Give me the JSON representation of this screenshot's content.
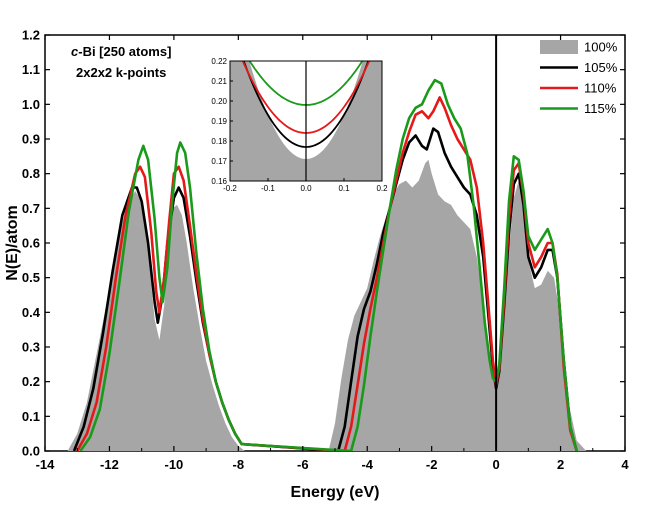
{
  "chart_data": {
    "type": "area",
    "xlabel": "Energy (eV)",
    "ylabel": "N(E)/atom",
    "xlim": [
      -14,
      4
    ],
    "ylim": [
      0.0,
      1.2
    ],
    "xticks": [
      "-14",
      "-12",
      "-10",
      "-8",
      "-6",
      "-4",
      "-2",
      "0",
      "2",
      "4"
    ],
    "yticks": [
      "0.0",
      "0.1",
      "0.2",
      "0.3",
      "0.4",
      "0.5",
      "0.6",
      "0.7",
      "0.8",
      "0.9",
      "1.0",
      "1.1",
      "1.2"
    ],
    "annotation_line1_prefix": "c",
    "annotation_line1_rest": "-Bi [250 atoms]",
    "annotation_line2": "2x2x2 k-points",
    "legend_position": "top-right",
    "fermi_line_x": 0,
    "series": [
      {
        "name": "100%",
        "style": "filled",
        "color": "#a6a6a6",
        "x": [
          -13.3,
          -13.0,
          -12.7,
          -12.4,
          -12.1,
          -11.8,
          -11.5,
          -11.2,
          -11.0,
          -10.8,
          -10.6,
          -10.45,
          -10.3,
          -10.2,
          -10.05,
          -9.9,
          -9.75,
          -9.6,
          -9.4,
          -9.2,
          -9.0,
          -8.8,
          -8.6,
          -8.4,
          -8.2,
          -8.0,
          -7.8,
          -5.2,
          -5.0,
          -4.8,
          -4.6,
          -4.4,
          -4.2,
          -4.0,
          -3.8,
          -3.6,
          -3.4,
          -3.2,
          -3.0,
          -2.8,
          -2.6,
          -2.4,
          -2.2,
          -2.1,
          -2.0,
          -1.8,
          -1.6,
          -1.4,
          -1.2,
          -1.0,
          -0.8,
          -0.6,
          -0.4,
          -0.25,
          -0.1,
          0.0,
          0.1,
          0.25,
          0.4,
          0.55,
          0.7,
          0.85,
          1.0,
          1.2,
          1.4,
          1.6,
          1.8,
          2.0,
          2.2,
          2.5,
          2.8
        ],
        "y": [
          0.0,
          0.05,
          0.14,
          0.28,
          0.42,
          0.58,
          0.7,
          0.75,
          0.72,
          0.58,
          0.38,
          0.32,
          0.42,
          0.58,
          0.7,
          0.71,
          0.68,
          0.6,
          0.47,
          0.36,
          0.26,
          0.19,
          0.13,
          0.08,
          0.04,
          0.015,
          0.0,
          0.0,
          0.08,
          0.21,
          0.32,
          0.39,
          0.43,
          0.47,
          0.55,
          0.62,
          0.68,
          0.74,
          0.77,
          0.78,
          0.76,
          0.78,
          0.83,
          0.84,
          0.8,
          0.74,
          0.72,
          0.71,
          0.68,
          0.66,
          0.64,
          0.56,
          0.42,
          0.3,
          0.22,
          0.18,
          0.22,
          0.38,
          0.58,
          0.73,
          0.78,
          0.72,
          0.55,
          0.47,
          0.48,
          0.52,
          0.5,
          0.38,
          0.16,
          0.03,
          0.0
        ]
      },
      {
        "name": "105%",
        "style": "line",
        "color": "#000000",
        "x": [
          -13.1,
          -12.8,
          -12.5,
          -12.2,
          -11.9,
          -11.6,
          -11.3,
          -11.15,
          -11.0,
          -10.8,
          -10.6,
          -10.5,
          -10.35,
          -10.2,
          -10.0,
          -9.85,
          -9.7,
          -9.5,
          -9.3,
          -9.1,
          -8.9,
          -8.7,
          -8.5,
          -8.3,
          -8.1,
          -7.9,
          -4.9,
          -4.7,
          -4.5,
          -4.3,
          -4.1,
          -3.9,
          -3.7,
          -3.5,
          -3.3,
          -3.1,
          -2.9,
          -2.7,
          -2.5,
          -2.3,
          -2.15,
          -1.95,
          -1.8,
          -1.6,
          -1.4,
          -1.2,
          -1.0,
          -0.8,
          -0.6,
          -0.4,
          -0.25,
          -0.1,
          0.0,
          0.1,
          0.25,
          0.4,
          0.55,
          0.7,
          0.85,
          1.0,
          1.2,
          1.4,
          1.6,
          1.75,
          1.9,
          2.1,
          2.3,
          2.5
        ],
        "y": [
          0.0,
          0.07,
          0.18,
          0.34,
          0.52,
          0.68,
          0.76,
          0.76,
          0.72,
          0.6,
          0.43,
          0.37,
          0.45,
          0.6,
          0.73,
          0.76,
          0.73,
          0.62,
          0.49,
          0.37,
          0.28,
          0.2,
          0.14,
          0.09,
          0.05,
          0.02,
          0.0,
          0.07,
          0.2,
          0.33,
          0.41,
          0.46,
          0.54,
          0.63,
          0.7,
          0.77,
          0.84,
          0.89,
          0.91,
          0.88,
          0.87,
          0.93,
          0.92,
          0.86,
          0.82,
          0.79,
          0.76,
          0.74,
          0.68,
          0.56,
          0.4,
          0.24,
          0.18,
          0.23,
          0.42,
          0.63,
          0.77,
          0.8,
          0.71,
          0.56,
          0.5,
          0.53,
          0.58,
          0.58,
          0.5,
          0.26,
          0.07,
          0.0
        ]
      },
      {
        "name": "110%",
        "style": "line",
        "color": "#e41a1a",
        "x": [
          -13.0,
          -12.7,
          -12.4,
          -12.1,
          -11.8,
          -11.5,
          -11.2,
          -11.05,
          -10.9,
          -10.7,
          -10.55,
          -10.45,
          -10.3,
          -10.15,
          -10.0,
          -9.85,
          -9.7,
          -9.5,
          -9.3,
          -9.1,
          -8.9,
          -8.7,
          -8.5,
          -8.3,
          -8.1,
          -7.9,
          -4.7,
          -4.5,
          -4.3,
          -4.1,
          -3.9,
          -3.7,
          -3.5,
          -3.3,
          -3.1,
          -2.9,
          -2.7,
          -2.5,
          -2.3,
          -2.1,
          -1.95,
          -1.75,
          -1.6,
          -1.4,
          -1.2,
          -1.0,
          -0.8,
          -0.6,
          -0.4,
          -0.25,
          -0.1,
          0.0,
          0.1,
          0.25,
          0.4,
          0.55,
          0.7,
          0.85,
          1.0,
          1.2,
          1.4,
          1.6,
          1.75,
          1.9,
          2.1,
          2.3,
          2.5
        ],
        "y": [
          0.0,
          0.05,
          0.14,
          0.3,
          0.5,
          0.68,
          0.8,
          0.82,
          0.79,
          0.63,
          0.46,
          0.4,
          0.5,
          0.66,
          0.8,
          0.82,
          0.78,
          0.65,
          0.51,
          0.38,
          0.28,
          0.2,
          0.14,
          0.09,
          0.05,
          0.02,
          0.0,
          0.07,
          0.19,
          0.31,
          0.41,
          0.5,
          0.6,
          0.7,
          0.78,
          0.86,
          0.92,
          0.97,
          0.98,
          0.96,
          0.98,
          1.02,
          0.99,
          0.94,
          0.9,
          0.87,
          0.84,
          0.76,
          0.6,
          0.43,
          0.26,
          0.19,
          0.24,
          0.44,
          0.67,
          0.81,
          0.83,
          0.74,
          0.6,
          0.53,
          0.56,
          0.6,
          0.6,
          0.51,
          0.24,
          0.06,
          0.0
        ]
      },
      {
        "name": "115%",
        "style": "line",
        "color": "#1a9a1a",
        "x": [
          -12.9,
          -12.6,
          -12.3,
          -12.0,
          -11.7,
          -11.4,
          -11.1,
          -10.95,
          -10.8,
          -10.6,
          -10.45,
          -10.35,
          -10.2,
          -10.05,
          -9.9,
          -9.8,
          -9.65,
          -9.5,
          -9.3,
          -9.1,
          -8.9,
          -8.7,
          -8.5,
          -8.3,
          -8.1,
          -7.9,
          -4.5,
          -4.3,
          -4.1,
          -3.9,
          -3.7,
          -3.5,
          -3.3,
          -3.1,
          -2.9,
          -2.7,
          -2.5,
          -2.3,
          -2.1,
          -1.9,
          -1.7,
          -1.5,
          -1.3,
          -1.1,
          -0.9,
          -0.7,
          -0.5,
          -0.35,
          -0.2,
          -0.1,
          0.0,
          0.1,
          0.25,
          0.4,
          0.55,
          0.7,
          0.85,
          1.0,
          1.2,
          1.4,
          1.6,
          1.75,
          1.9,
          2.1,
          2.3,
          2.5
        ],
        "y": [
          0.0,
          0.04,
          0.12,
          0.28,
          0.48,
          0.69,
          0.84,
          0.88,
          0.84,
          0.67,
          0.5,
          0.43,
          0.53,
          0.72,
          0.86,
          0.89,
          0.86,
          0.76,
          0.57,
          0.41,
          0.29,
          0.2,
          0.14,
          0.09,
          0.05,
          0.02,
          0.0,
          0.07,
          0.19,
          0.33,
          0.46,
          0.58,
          0.7,
          0.81,
          0.9,
          0.96,
          0.99,
          1.0,
          1.04,
          1.07,
          1.06,
          1.0,
          0.96,
          0.93,
          0.86,
          0.71,
          0.52,
          0.37,
          0.26,
          0.21,
          0.2,
          0.25,
          0.47,
          0.72,
          0.85,
          0.84,
          0.75,
          0.62,
          0.58,
          0.61,
          0.64,
          0.6,
          0.5,
          0.26,
          0.07,
          0.0
        ]
      }
    ],
    "inset": {
      "xlim": [
        -0.2,
        0.2
      ],
      "ylim": [
        0.16,
        0.22
      ],
      "xticks": [
        "-0.2",
        "-0.1",
        "0.0",
        "0.1",
        "0.2"
      ],
      "yticks": [
        "0.16",
        "0.17",
        "0.18",
        "0.19",
        "0.20",
        "0.21",
        "0.22"
      ],
      "minima": [
        0.171,
        0.177,
        0.184,
        0.198
      ],
      "curvature": [
        2.2,
        1.6,
        1.3,
        1.0
      ]
    }
  }
}
